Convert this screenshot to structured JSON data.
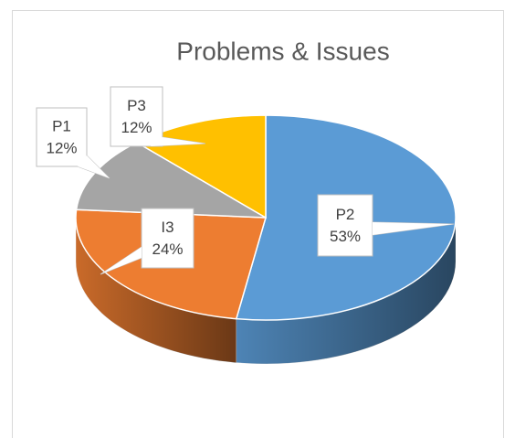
{
  "chart_data": {
    "type": "pie3d",
    "title": "Problems & Issues",
    "categories": [
      "P2",
      "I3",
      "P1",
      "P3"
    ],
    "values": [
      53,
      24,
      12,
      12
    ],
    "value_labels": [
      "53%",
      "24%",
      "12%",
      "12%"
    ],
    "colors": [
      "#5b9bd5",
      "#ed7d31",
      "#a5a5a5",
      "#ffc000"
    ]
  }
}
